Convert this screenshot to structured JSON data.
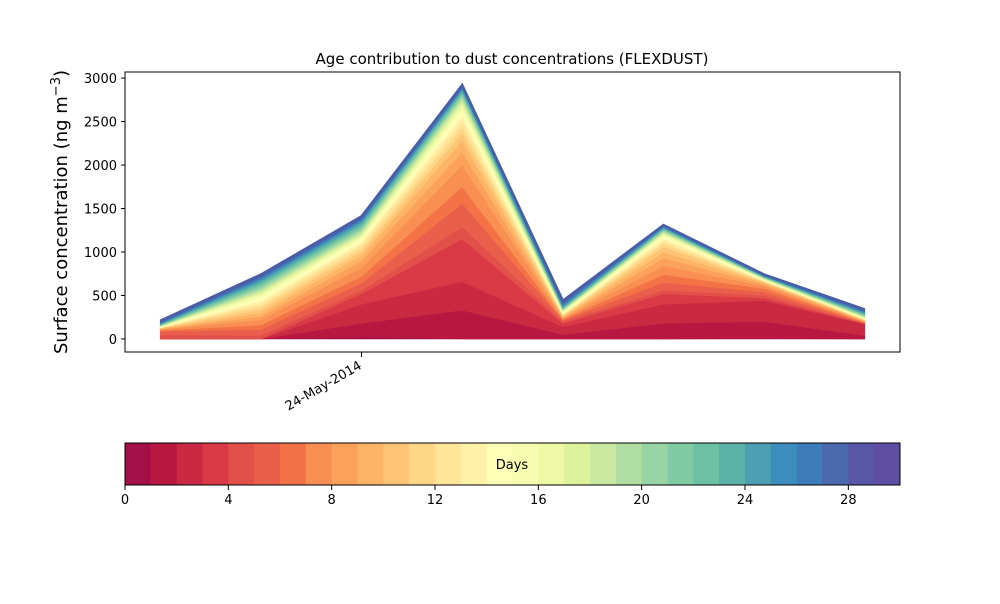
{
  "chart_data": {
    "type": "area",
    "title": "Age contribution to dust concentrations (FLEXDUST)",
    "ylabel": "Surface concentration (ng m",
    "ylabel_sup": "−3",
    "ylabel_close": ")",
    "xlabel": "",
    "xtick_label": "24-May-2014",
    "ylim": [
      -150,
      3070
    ],
    "yticks": [
      0,
      500,
      1000,
      1500,
      2000,
      2500,
      3000
    ],
    "n_points": 8,
    "xtick_index": 2,
    "xrange": [
      -0.35,
      7.35
    ],
    "colorbar": {
      "label": "Days",
      "range": [
        0,
        30
      ],
      "ticks": [
        0,
        4,
        8,
        12,
        16,
        20,
        24,
        28
      ],
      "colors": [
        "#a50f48",
        "#b8173f",
        "#c92a42",
        "#d93a46",
        "#e3504a",
        "#ea5f4c",
        "#f37346",
        "#f98f52",
        "#fca15c",
        "#fdb466",
        "#fec576",
        "#fed687",
        "#fee598",
        "#fff1a8",
        "#feffb8",
        "#f7fdb0",
        "#eef9a6",
        "#def29c",
        "#c8e99f",
        "#b1dfa2",
        "#98d5a4",
        "#80cba4",
        "#6dc0a4",
        "#5ab2a8",
        "#4aa0b2",
        "#3b8dbb",
        "#3d7cb8",
        "#4a68ae",
        "#5956a5",
        "#5e4fa2"
      ]
    },
    "totals": [
      210,
      740,
      1410,
      2920,
      440,
      1310,
      740,
      340
    ],
    "layer_tops": [
      [
        0,
        0,
        25,
        0,
        0,
        0,
        5,
        0
      ],
      [
        0,
        0,
        180,
        330,
        50,
        180,
        200,
        40
      ],
      [
        0,
        0,
        400,
        660,
        140,
        400,
        440,
        170
      ],
      [
        0,
        0,
        520,
        1150,
        180,
        520,
        470,
        175
      ],
      [
        50,
        40,
        560,
        1290,
        200,
        560,
        500,
        180
      ],
      [
        90,
        110,
        640,
        1560,
        215,
        650,
        540,
        185
      ],
      [
        100,
        160,
        720,
        1750,
        225,
        740,
        580,
        190
      ],
      [
        110,
        220,
        820,
        2000,
        235,
        840,
        610,
        200
      ],
      [
        115,
        260,
        900,
        2150,
        245,
        930,
        630,
        205
      ],
      [
        120,
        300,
        960,
        2280,
        255,
        1000,
        645,
        210
      ],
      [
        125,
        340,
        1010,
        2370,
        265,
        1060,
        655,
        215
      ],
      [
        128,
        380,
        1050,
        2440,
        272,
        1100,
        662,
        220
      ],
      [
        131,
        410,
        1090,
        2510,
        280,
        1130,
        668,
        225
      ],
      [
        134,
        440,
        1120,
        2570,
        290,
        1160,
        674,
        230
      ],
      [
        137,
        470,
        1150,
        2620,
        300,
        1180,
        680,
        235
      ],
      [
        140,
        500,
        1170,
        2660,
        310,
        1195,
        685,
        240
      ],
      [
        143,
        520,
        1190,
        2700,
        318,
        1210,
        690,
        245
      ],
      [
        146,
        540,
        1210,
        2730,
        325,
        1220,
        694,
        250
      ],
      [
        149,
        560,
        1230,
        2760,
        332,
        1230,
        698,
        255
      ],
      [
        152,
        580,
        1250,
        2780,
        338,
        1240,
        702,
        262
      ],
      [
        156,
        600,
        1270,
        2800,
        345,
        1250,
        706,
        270
      ],
      [
        160,
        620,
        1290,
        2820,
        352,
        1258,
        710,
        278
      ],
      [
        165,
        640,
        1310,
        2840,
        360,
        1266,
        714,
        286
      ],
      [
        170,
        660,
        1330,
        2855,
        370,
        1274,
        718,
        294
      ],
      [
        176,
        680,
        1350,
        2870,
        380,
        1282,
        722,
        302
      ],
      [
        182,
        695,
        1365,
        2882,
        392,
        1290,
        726,
        310
      ],
      [
        188,
        708,
        1378,
        2893,
        404,
        1296,
        730,
        318
      ],
      [
        195,
        720,
        1390,
        2903,
        416,
        1301,
        734,
        326
      ],
      [
        202,
        730,
        1400,
        2912,
        428,
        1306,
        737,
        333
      ],
      [
        210,
        740,
        1410,
        2920,
        440,
        1310,
        740,
        340
      ]
    ]
  }
}
